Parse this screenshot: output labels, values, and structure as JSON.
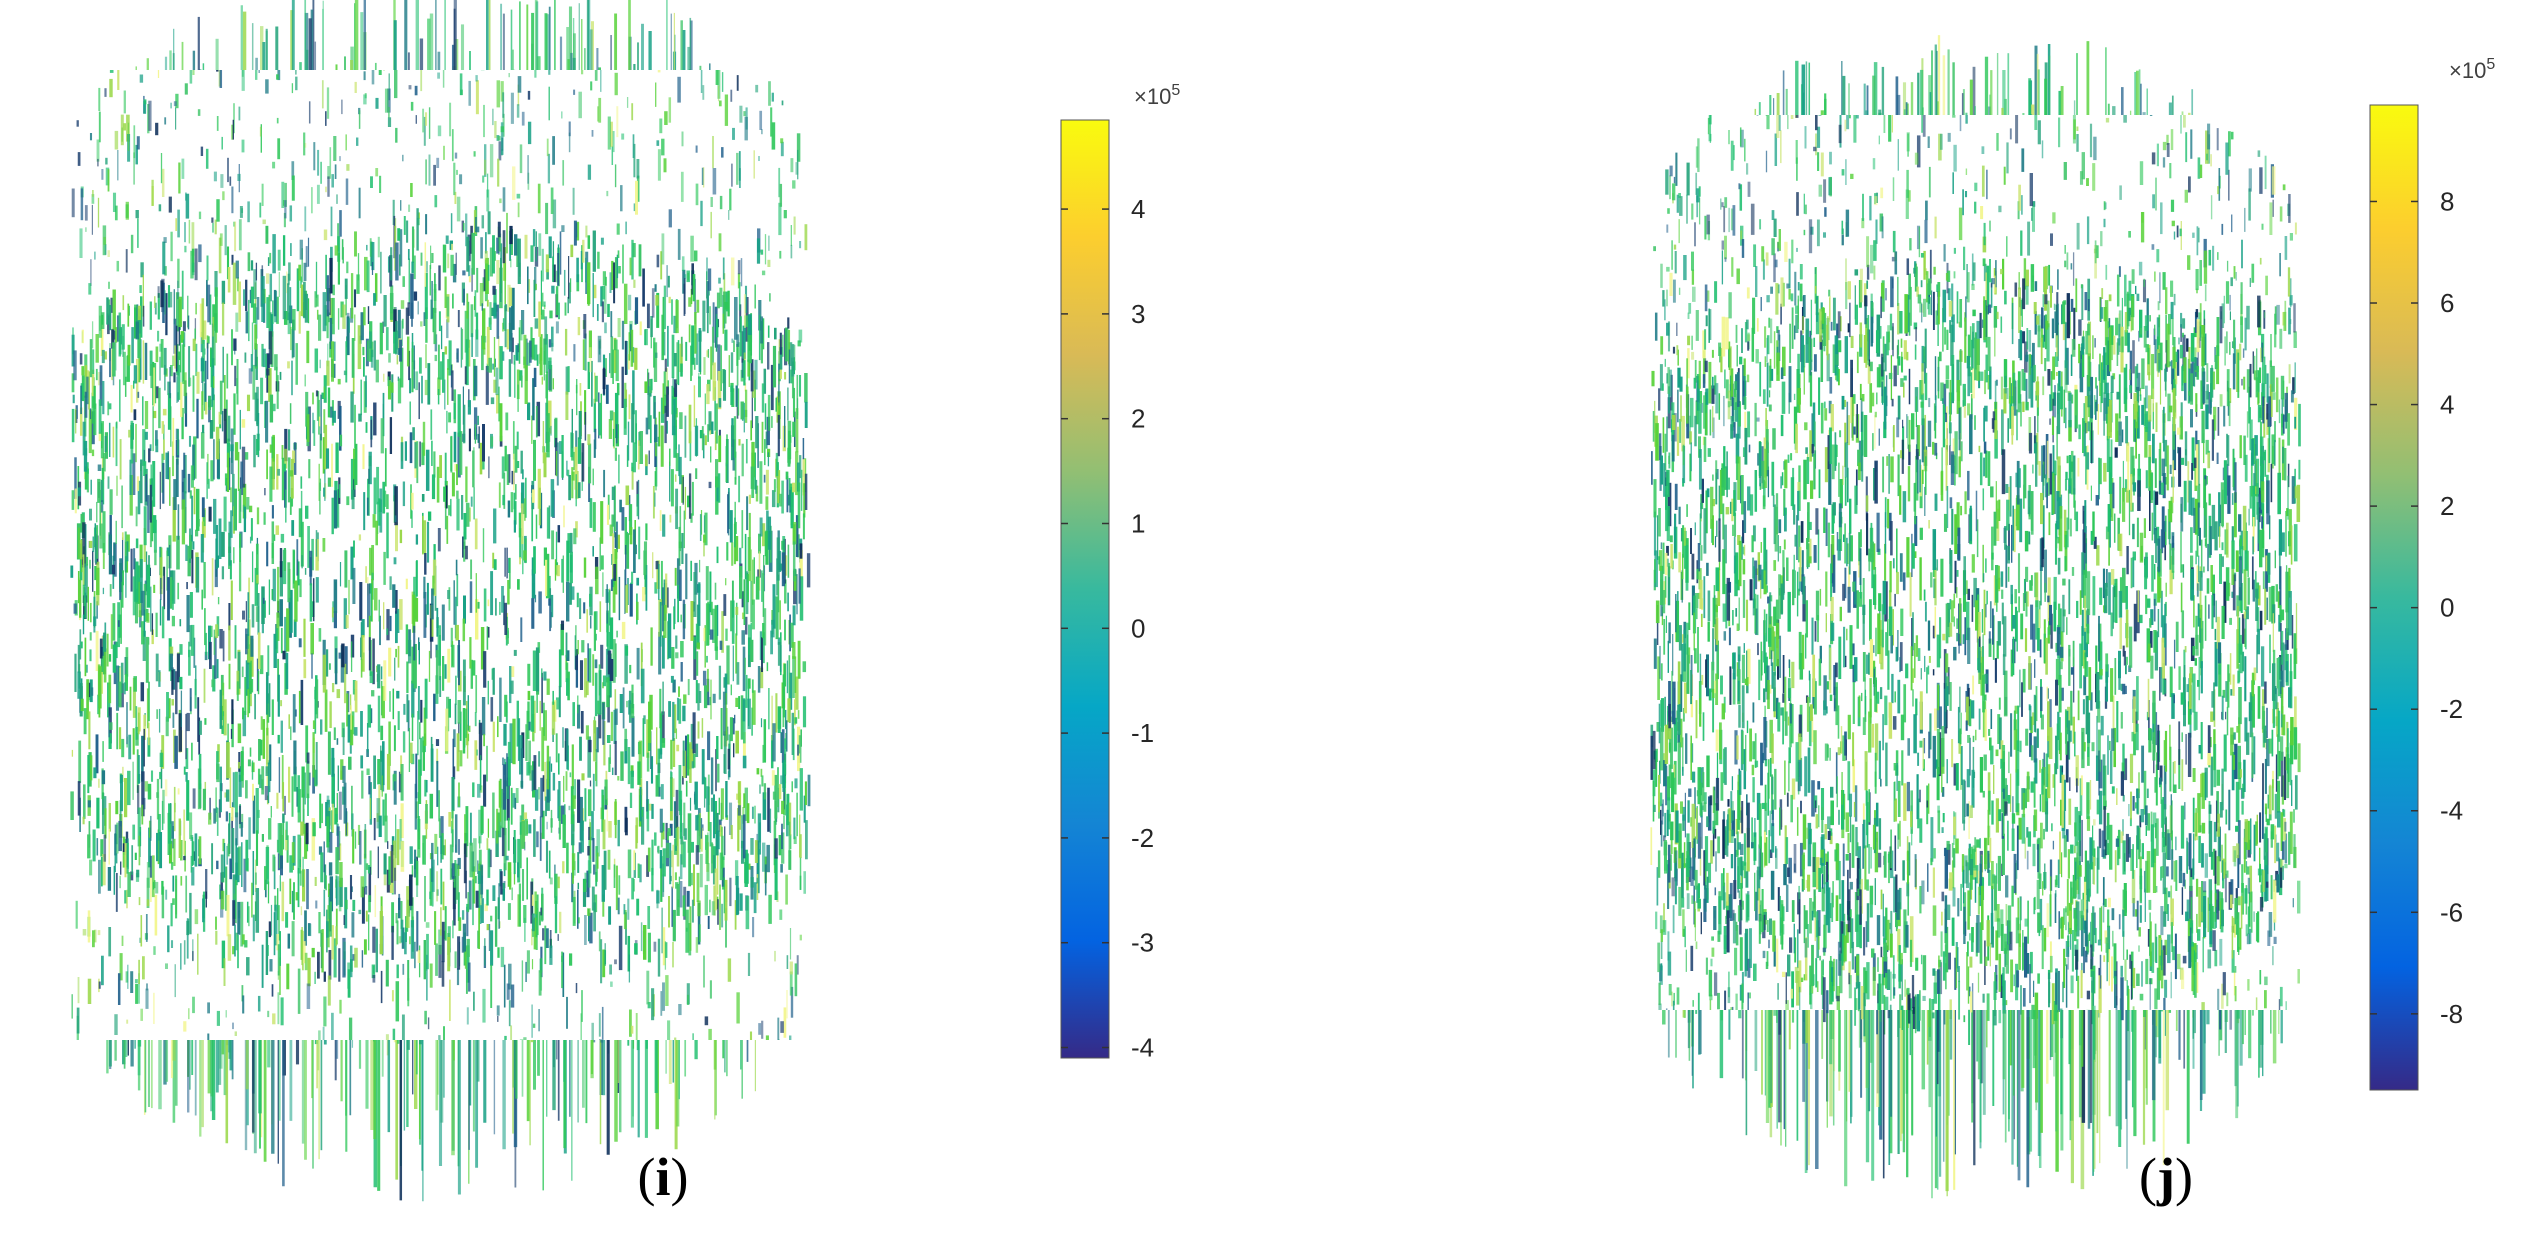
{
  "chart_data": [
    {
      "type": "heatmap",
      "panel_label": "i",
      "colormap": "parula",
      "colorbar": {
        "multiplier_base": "×10",
        "multiplier_exp": "5",
        "ticks": [
          4,
          3,
          2,
          1,
          0,
          -1,
          -2,
          -3,
          -4
        ],
        "tick_labels": [
          "4",
          "3",
          "2",
          "1",
          "0",
          "-1",
          "-2",
          "-3",
          "-4"
        ],
        "range": [
          -4.1,
          4.85
        ],
        "colors": [
          "#352a87",
          "#0363e1",
          "#1485d4",
          "#06a7c6",
          "#38b99e",
          "#92bf73",
          "#d9ba56",
          "#fcce2e",
          "#f9fb0e"
        ]
      }
    },
    {
      "type": "heatmap",
      "panel_label": "j",
      "colormap": "parula",
      "colorbar": {
        "multiplier_base": "×10",
        "multiplier_exp": "5",
        "ticks": [
          8,
          6,
          4,
          2,
          0,
          -2,
          -4,
          -6,
          -8
        ],
        "tick_labels": [
          "8",
          "6",
          "4",
          "2",
          "0",
          "-2",
          "-4",
          "-6",
          "-8"
        ],
        "range": [
          -9.5,
          9.9
        ],
        "colors": [
          "#352a87",
          "#0363e1",
          "#1485d4",
          "#06a7c6",
          "#38b99e",
          "#92bf73",
          "#d9ba56",
          "#fcce2e",
          "#f9fb0e"
        ]
      }
    }
  ]
}
